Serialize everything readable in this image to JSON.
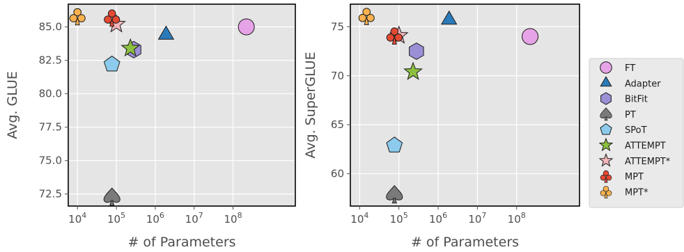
{
  "legend": [
    {
      "name": "FT",
      "marker": "circle",
      "color": "#e6a3e6"
    },
    {
      "name": "Adapter",
      "marker": "triangle",
      "color": "#2b7bba"
    },
    {
      "name": "BitFit",
      "marker": "hexagon",
      "color": "#9b8fd6"
    },
    {
      "name": "PT",
      "marker": "spade",
      "color": "#7a7a7a"
    },
    {
      "name": "SPoT",
      "marker": "pentagon",
      "color": "#8ccbec"
    },
    {
      "name": "ATTEMPT",
      "marker": "star",
      "color": "#8cbf3f"
    },
    {
      "name": "ATTEMPT*",
      "marker": "star",
      "color": "#f4b6bb"
    },
    {
      "name": "MPT",
      "marker": "club",
      "color": "#e34a33"
    },
    {
      "name": "MPT*",
      "marker": "club",
      "color": "#f9b24f"
    }
  ],
  "chart_data": [
    {
      "type": "scatter",
      "xlabel": "# of Parameters",
      "ylabel": "Avg. GLUE",
      "xscale": "log",
      "xlim": [
        5800,
        4000000000
      ],
      "ylim": [
        71.6,
        86.7
      ],
      "xticks": [
        {
          "value": 10000,
          "base": "10",
          "exp": "4"
        },
        {
          "value": 100000,
          "base": "10",
          "exp": "5"
        },
        {
          "value": 1000000,
          "base": "10",
          "exp": "6"
        },
        {
          "value": 10000000,
          "base": "10",
          "exp": "7"
        },
        {
          "value": 100000000,
          "base": "10",
          "exp": "8"
        }
      ],
      "yticks": [
        {
          "value": 72.5,
          "label": "72.5"
        },
        {
          "value": 75.0,
          "label": "75.0"
        },
        {
          "value": 77.5,
          "label": "77.5"
        },
        {
          "value": 80.0,
          "label": "80.0"
        },
        {
          "value": 82.5,
          "label": "82.5"
        },
        {
          "value": 85.0,
          "label": "85.0"
        }
      ],
      "grid": true,
      "points": [
        {
          "series": "FT",
          "x": 220000000,
          "y": 85.0
        },
        {
          "series": "Adapter",
          "x": 1900000,
          "y": 84.4
        },
        {
          "series": "BitFit",
          "x": 280000,
          "y": 83.3
        },
        {
          "series": "PT",
          "x": 77000,
          "y": 72.3
        },
        {
          "series": "SPoT",
          "x": 77000,
          "y": 82.2
        },
        {
          "series": "ATTEMPT",
          "x": 230000,
          "y": 83.4
        },
        {
          "series": "ATTEMPT*",
          "x": 100000,
          "y": 85.2
        },
        {
          "series": "MPT",
          "x": 77000,
          "y": 85.7
        },
        {
          "series": "MPT*",
          "x": 10000,
          "y": 85.8
        }
      ]
    },
    {
      "type": "scatter",
      "xlabel": "# of Parameters",
      "ylabel": "Avg. SuperGLUE",
      "xscale": "log",
      "xlim": [
        5800,
        4000000000
      ],
      "ylim": [
        56.7,
        77.3
      ],
      "xticks": [
        {
          "value": 10000,
          "base": "10",
          "exp": "4"
        },
        {
          "value": 100000,
          "base": "10",
          "exp": "5"
        },
        {
          "value": 1000000,
          "base": "10",
          "exp": "6"
        },
        {
          "value": 10000000,
          "base": "10",
          "exp": "7"
        },
        {
          "value": 100000000,
          "base": "10",
          "exp": "8"
        }
      ],
      "yticks": [
        {
          "value": 60,
          "label": "60"
        },
        {
          "value": 65,
          "label": "65"
        },
        {
          "value": 70,
          "label": "70"
        },
        {
          "value": 75,
          "label": "75"
        }
      ],
      "grid": true,
      "points": [
        {
          "series": "FT",
          "x": 220000000,
          "y": 74.0
        },
        {
          "series": "Adapter",
          "x": 1900000,
          "y": 75.7
        },
        {
          "series": "BitFit",
          "x": 280000,
          "y": 72.5
        },
        {
          "series": "PT",
          "x": 77000,
          "y": 57.9
        },
        {
          "series": "SPoT",
          "x": 77000,
          "y": 62.9
        },
        {
          "series": "ATTEMPT",
          "x": 230000,
          "y": 70.4
        },
        {
          "series": "ATTEMPT*",
          "x": 100000,
          "y": 74.1
        },
        {
          "series": "MPT",
          "x": 77000,
          "y": 74.1
        },
        {
          "series": "MPT*",
          "x": 15000,
          "y": 76.1
        }
      ]
    }
  ]
}
